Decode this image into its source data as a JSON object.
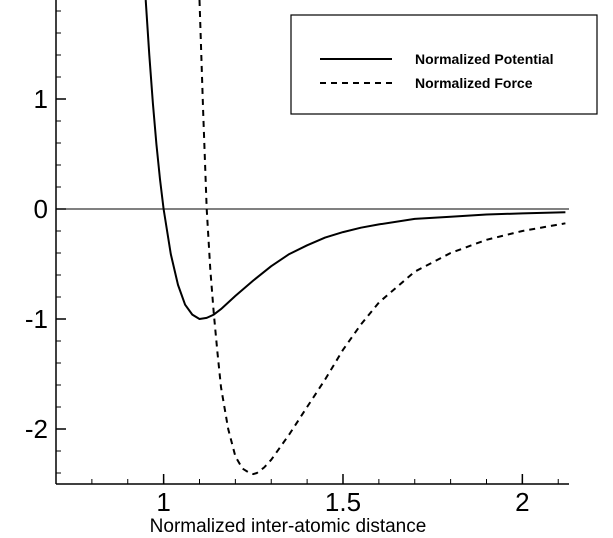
{
  "chart_data": {
    "type": "line",
    "title": "",
    "xlabel": "Normalized inter-atomic distance",
    "ylabel": "",
    "xlim": [
      0.7,
      2.13
    ],
    "ylim": [
      -2.5,
      1.9
    ],
    "x_ticks": [
      {
        "value": 1,
        "label": "1"
      },
      {
        "value": 1.5,
        "label": "1.5"
      },
      {
        "value": 2,
        "label": "2"
      }
    ],
    "y_ticks": [
      {
        "value": 1,
        "label": "1"
      },
      {
        "value": 0,
        "label": "0"
      },
      {
        "value": -1,
        "label": "-1"
      },
      {
        "value": -2,
        "label": "-2"
      }
    ],
    "x_minor_step": 0.1,
    "y_minor_step": 0.2,
    "zero_line": true,
    "grid": false,
    "legend_position": "top-right",
    "series": [
      {
        "name": "Normalized Potential",
        "style": "solid",
        "color": "#000000",
        "x": [
          0.95,
          0.96,
          0.97,
          0.98,
          0.99,
          1.0,
          1.02,
          1.04,
          1.06,
          1.08,
          1.1,
          1.12,
          1.14,
          1.16,
          1.18,
          1.2,
          1.25,
          1.3,
          1.35,
          1.4,
          1.45,
          1.5,
          1.55,
          1.6,
          1.7,
          1.8,
          1.9,
          2.0,
          2.12
        ],
        "y": [
          1.9,
          1.4,
          0.96,
          0.59,
          0.27,
          0.0,
          -0.41,
          -0.69,
          -0.87,
          -0.96,
          -1.0,
          -0.99,
          -0.96,
          -0.91,
          -0.85,
          -0.79,
          -0.65,
          -0.52,
          -0.41,
          -0.33,
          -0.26,
          -0.21,
          -0.17,
          -0.14,
          -0.09,
          -0.07,
          -0.05,
          -0.04,
          -0.03
        ]
      },
      {
        "name": "Normalized Force",
        "style": "dashed",
        "color": "#000000",
        "x": [
          1.1,
          1.105,
          1.11,
          1.12,
          1.13,
          1.14,
          1.15,
          1.16,
          1.18,
          1.2,
          1.22,
          1.24,
          1.25,
          1.26,
          1.28,
          1.3,
          1.35,
          1.4,
          1.45,
          1.5,
          1.55,
          1.6,
          1.7,
          1.8,
          1.9,
          2.0,
          2.12
        ],
        "y": [
          1.9,
          1.4,
          0.9,
          0.0,
          -0.55,
          -0.95,
          -1.3,
          -1.62,
          -2.0,
          -2.25,
          -2.36,
          -2.4,
          -2.41,
          -2.4,
          -2.35,
          -2.28,
          -2.05,
          -1.8,
          -1.55,
          -1.28,
          -1.05,
          -0.85,
          -0.57,
          -0.4,
          -0.28,
          -0.2,
          -0.13
        ]
      }
    ]
  }
}
